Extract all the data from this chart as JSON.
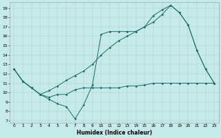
{
  "xlabel": "Humidex (Indice chaleur)",
  "background_color": "#c5eaea",
  "line_color": "#1a6b6b",
  "grid_color": "#b5b5b5",
  "xlim": [
    -0.5,
    23.5
  ],
  "ylim": [
    6.8,
    19.6
  ],
  "yticks": [
    7,
    8,
    9,
    10,
    11,
    12,
    13,
    14,
    15,
    16,
    17,
    18,
    19
  ],
  "xticks": [
    0,
    1,
    2,
    3,
    4,
    5,
    6,
    7,
    8,
    9,
    10,
    11,
    12,
    13,
    14,
    15,
    16,
    17,
    18,
    19,
    20,
    21,
    22,
    23
  ],
  "line1_x": [
    0,
    1,
    2,
    3,
    4,
    5,
    6,
    7,
    8,
    9,
    10,
    11,
    12,
    13,
    14,
    15,
    16,
    17,
    18,
    19,
    20,
    21,
    22,
    23
  ],
  "line1_y": [
    12.5,
    11.2,
    10.5,
    9.8,
    9.5,
    9.8,
    9.8,
    10.3,
    10.5,
    10.5,
    10.5,
    10.5,
    10.5,
    10.7,
    10.7,
    10.8,
    11.0,
    11.0,
    11.0,
    11.0,
    11.0,
    11.0,
    11.0,
    11.0
  ],
  "line2_x": [
    0,
    1,
    2,
    3,
    4,
    5,
    6,
    7,
    8,
    9,
    10,
    11,
    12,
    13,
    14,
    15,
    16,
    17,
    18,
    19,
    20,
    21,
    22,
    23
  ],
  "line2_y": [
    12.5,
    11.2,
    10.5,
    9.8,
    10.2,
    10.7,
    11.3,
    11.8,
    12.3,
    13.0,
    14.0,
    14.8,
    15.5,
    16.0,
    16.5,
    17.0,
    17.5,
    18.3,
    19.3,
    18.5,
    17.2,
    14.5,
    12.5,
    11.0
  ],
  "line3_x": [
    0,
    1,
    2,
    3,
    4,
    5,
    6,
    7,
    8,
    9,
    10,
    11,
    12,
    13,
    14,
    15,
    16,
    17,
    18,
    19,
    20,
    21,
    22,
    23
  ],
  "line3_y": [
    12.5,
    11.2,
    10.5,
    9.8,
    9.3,
    8.8,
    8.5,
    7.2,
    8.7,
    10.8,
    16.2,
    16.5,
    16.5,
    16.5,
    16.5,
    17.0,
    18.2,
    18.8,
    19.3,
    18.5,
    17.2,
    14.5,
    12.5,
    11.0
  ]
}
